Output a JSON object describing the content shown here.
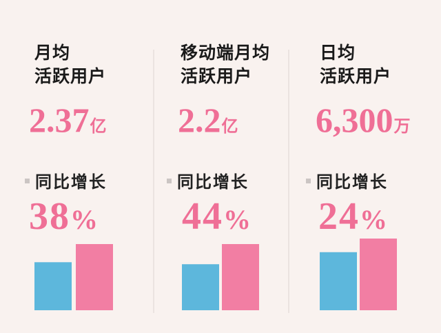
{
  "chart_data": {
    "type": "bar",
    "panels": [
      {
        "title_line1": "月均",
        "title_line2": "活跃用户",
        "value": "2.37",
        "unit": "亿",
        "yoy_label": "同比增长",
        "yoy_value": "38",
        "yoy_suffix": "%",
        "bars": {
          "previous": 1.72,
          "current": 2.37
        }
      },
      {
        "title_line1": "移动端月均",
        "title_line2": "活跃用户",
        "value": "2.2",
        "unit": "亿",
        "yoy_label": "同比增长",
        "yoy_value": "44",
        "yoy_suffix": "%",
        "bars": {
          "previous": 1.53,
          "current": 2.2
        }
      },
      {
        "title_line1": "日均",
        "title_line2": "活跃用户",
        "value": "6,300",
        "unit": "万",
        "yoy_label": "同比增长",
        "yoy_value": "24",
        "yoy_suffix": "%",
        "bars": {
          "previous": 0.81,
          "current": 1.0
        }
      }
    ],
    "colors": {
      "previous": "#5db7dc",
      "current": "#f27ea3"
    }
  }
}
